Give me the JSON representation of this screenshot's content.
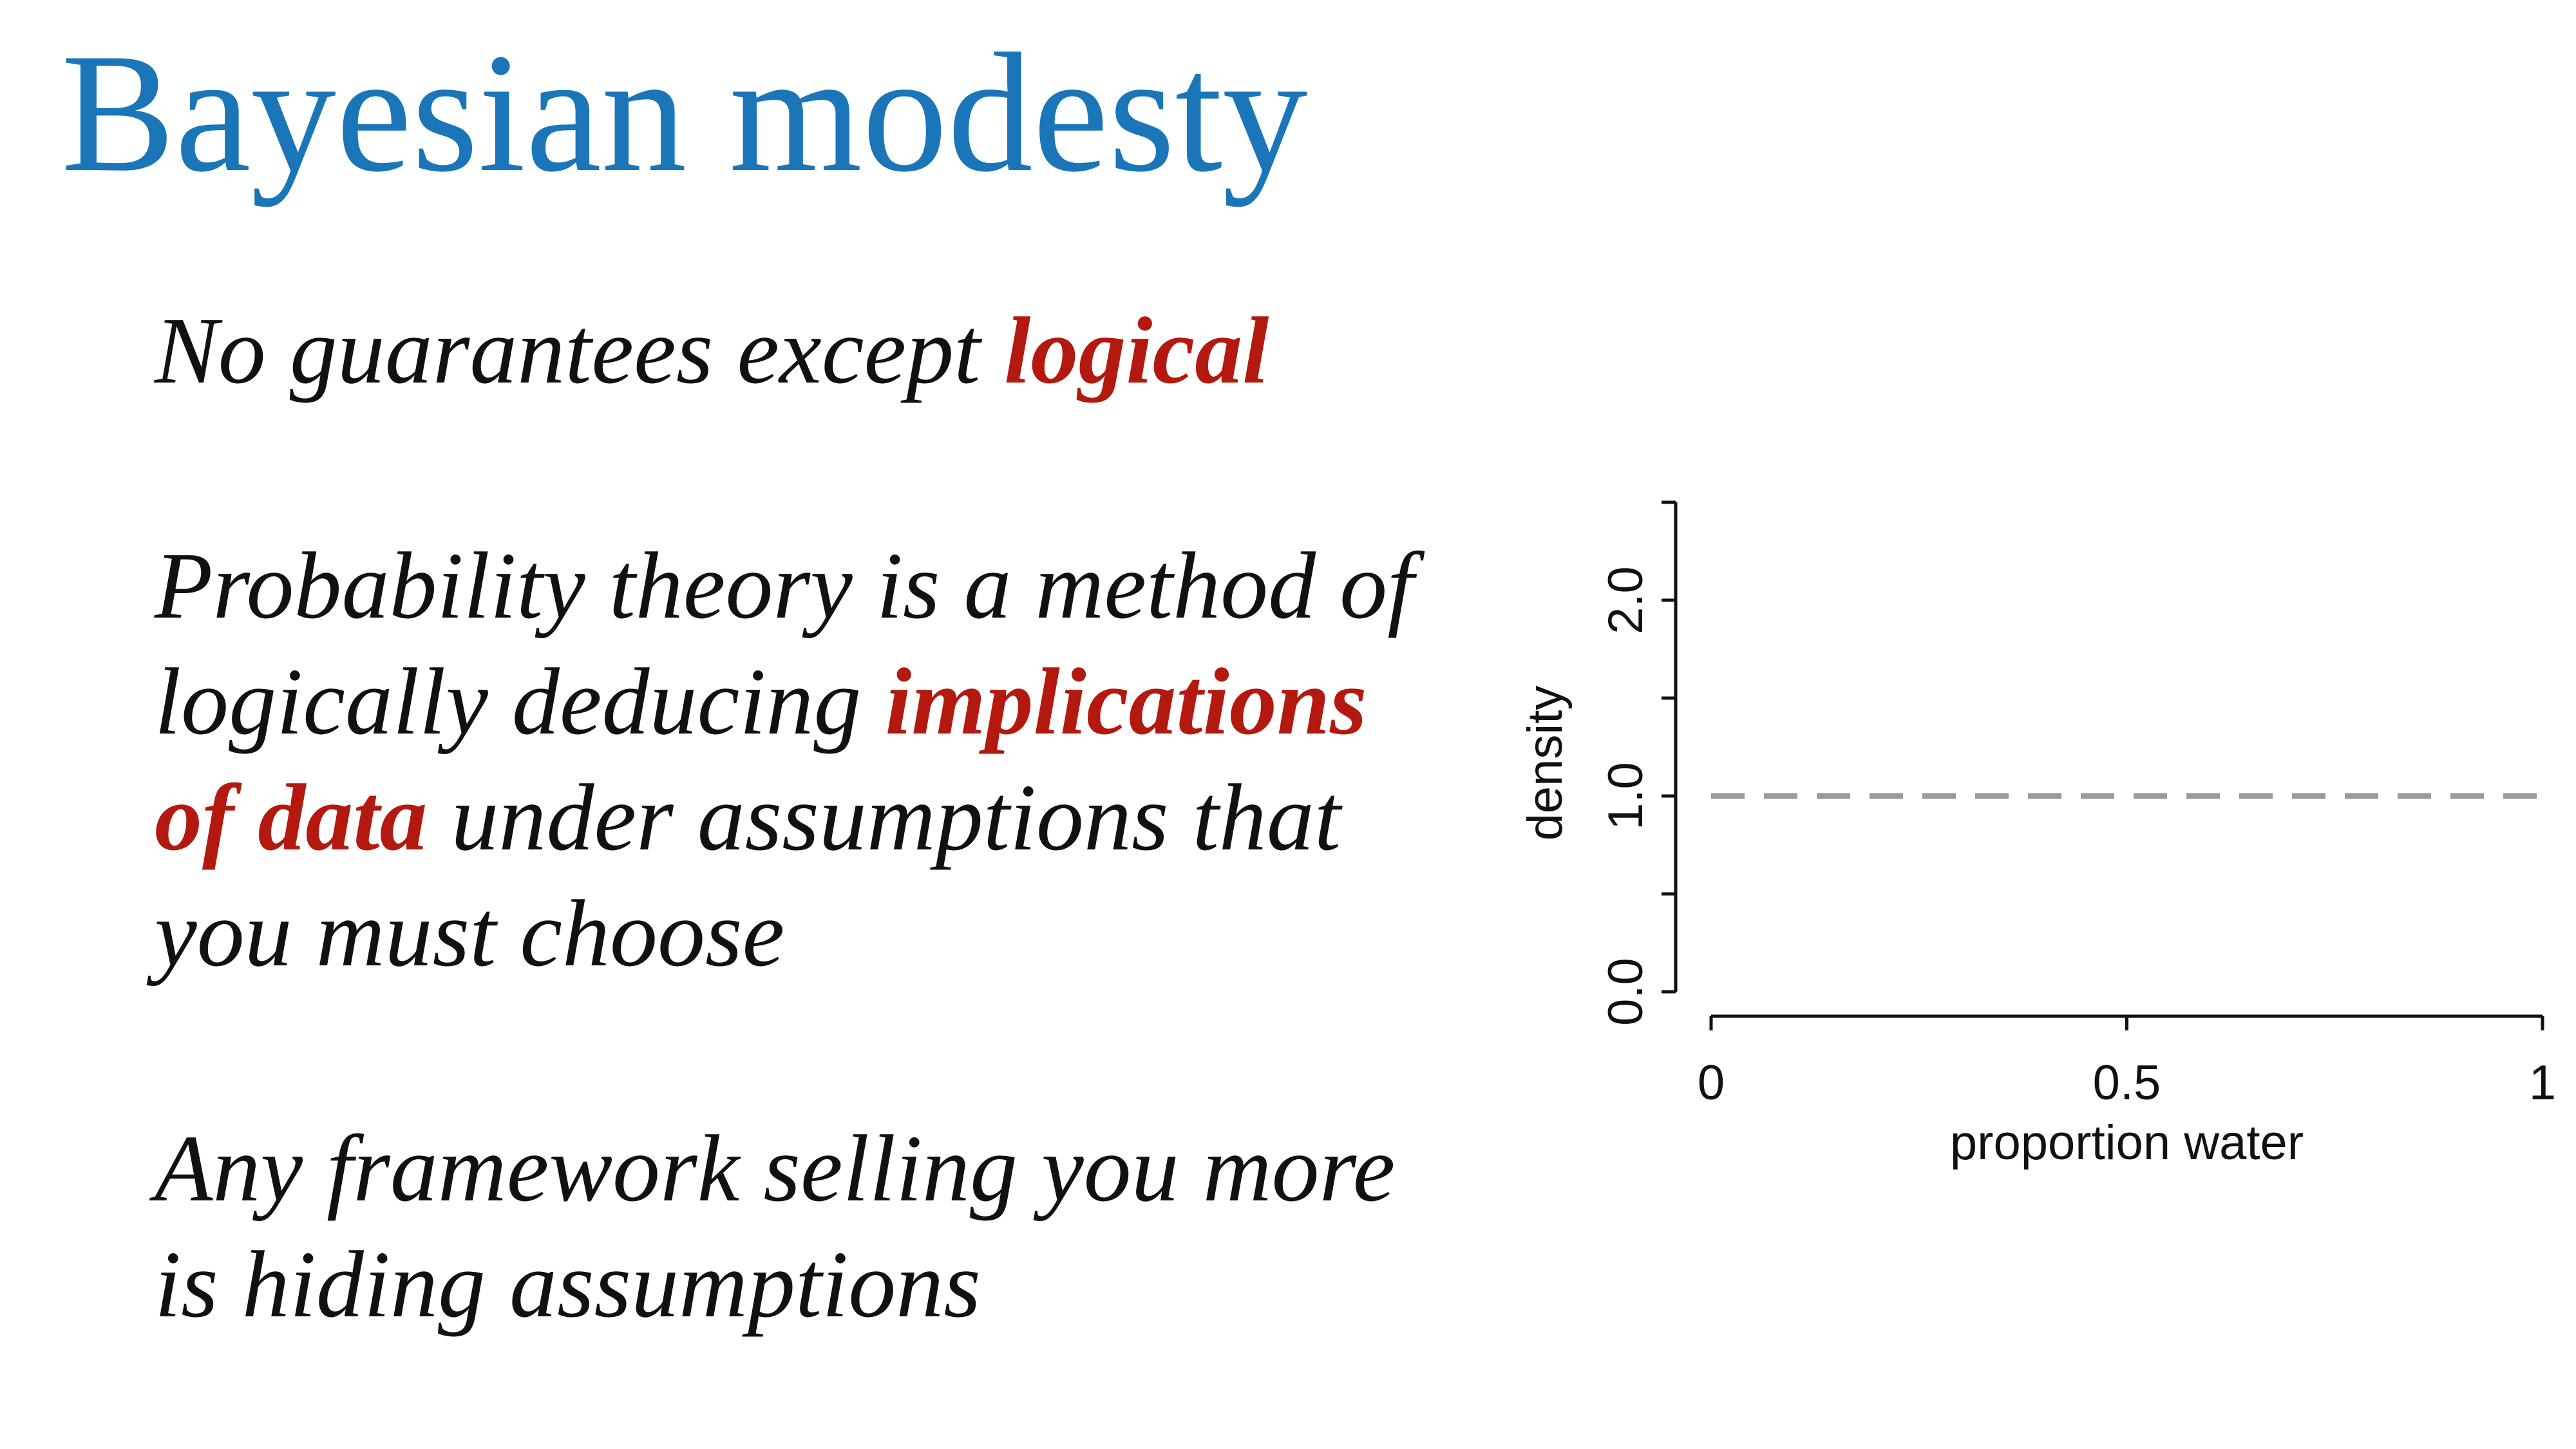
{
  "slide": {
    "title": "Bayesian modesty",
    "paragraph1": {
      "text": "No guarantees except ",
      "emphasis": "logical"
    },
    "paragraph2": {
      "line1": "Probability theory is a method of",
      "line2_prefix": "logically deducing ",
      "line2_emphasis": "implications",
      "line3_emphasis": "of data",
      "line3_suffix": " under assumptions that",
      "line4": "you must choose"
    },
    "paragraph3": {
      "line1": "Any framework selling you more",
      "line2": "is hiding assumptions"
    }
  },
  "colors": {
    "title": "#1a76b8",
    "emphasis": "#b3190f",
    "body_text": "#111111",
    "prior_line": "#9a9a9a"
  },
  "chart_data": {
    "type": "line",
    "xlabel": "proportion water",
    "ylabel": "density",
    "xlim": [
      0,
      1
    ],
    "ylim": [
      0,
      2.5
    ],
    "x_ticks": [
      0,
      0.5,
      1
    ],
    "x_tick_labels": [
      "0",
      "0.5",
      "1"
    ],
    "y_ticks": [
      0,
      0.5,
      1,
      1.5,
      2,
      2.5
    ],
    "y_tick_labels": [
      "0.0",
      "",
      "1.0",
      "",
      "2.0",
      ""
    ],
    "grid": false,
    "series": [
      {
        "style": "dashed",
        "color": "#9a9a9a",
        "x": [
          0,
          1
        ],
        "y": [
          1,
          1
        ]
      }
    ]
  }
}
